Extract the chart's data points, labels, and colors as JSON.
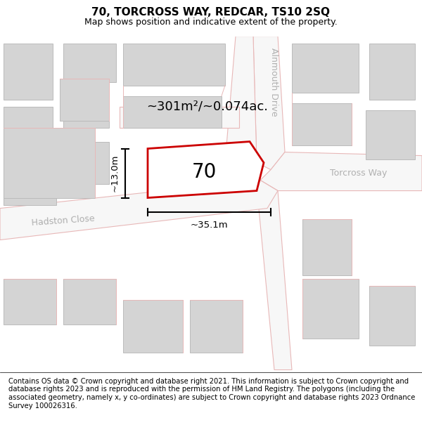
{
  "title_line1": "70, TORCROSS WAY, REDCAR, TS10 2SQ",
  "title_line2": "Map shows position and indicative extent of the property.",
  "footer_text": "Contains OS data © Crown copyright and database right 2021. This information is subject to Crown copyright and database rights 2023 and is reproduced with the permission of HM Land Registry. The polygons (including the associated geometry, namely x, y co-ordinates) are subject to Crown copyright and database rights 2023 Ordnance Survey 100026316.",
  "area_label": "~301m²/~0.074ac.",
  "property_number": "70",
  "dim_height_label": "~13.0m",
  "dim_width_label": "~35.1m",
  "street_alnmouth": "Alnmouth Drive",
  "street_torcross": "Torcross Way",
  "street_hadston": "Hadston Close",
  "map_bg": "#ececec",
  "road_fill": "#f7f7f7",
  "bld_fill": "#d4d4d4",
  "bld_edge": "#bbbbbb",
  "road_edge": "#e8b8b8",
  "prop_edge": "#cc0000",
  "prop_fill": "#ffffff",
  "street_label_color": "#b0b0b0",
  "title_fontsize": 11,
  "subtitle_fontsize": 9,
  "footer_fontsize": 7.2,
  "map_label_fontsize": 13,
  "number_fontsize": 20,
  "dim_fontsize": 9.5,
  "street_fontsize": 9
}
